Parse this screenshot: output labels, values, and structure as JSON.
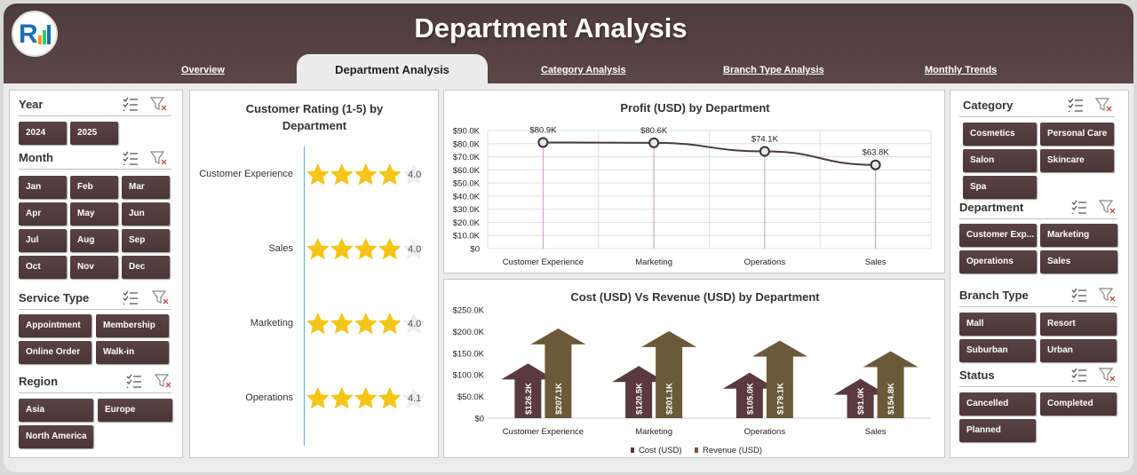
{
  "header": {
    "title": "Department Analysis",
    "tabs": [
      {
        "label": "Overview"
      },
      {
        "label": "Department Analysis"
      },
      {
        "label": "Category Analysis"
      },
      {
        "label": "Branch Type Analysis"
      },
      {
        "label": "Monthly Trends"
      }
    ]
  },
  "left_slicers": {
    "year": {
      "title": "Year",
      "items": [
        "2024",
        "2025"
      ]
    },
    "month": {
      "title": "Month",
      "items": [
        "Jan",
        "Feb",
        "Mar",
        "Apr",
        "May",
        "Jun",
        "Jul",
        "Aug",
        "Sep",
        "Oct",
        "Nov",
        "Dec"
      ]
    },
    "service_type": {
      "title": "Service Type",
      "items": [
        "Appointment",
        "Membership",
        "Online Order",
        "Walk-in"
      ]
    },
    "region": {
      "title": "Region",
      "items": [
        "Asia",
        "Europe",
        "North America"
      ]
    }
  },
  "right_slicers": {
    "category": {
      "title": "Category",
      "items": [
        "Cosmetics",
        "Personal Care",
        "Salon",
        "Skincare",
        "Spa"
      ]
    },
    "department": {
      "title": "Department",
      "items": [
        "Customer Exp...",
        "Marketing",
        "Operations",
        "Sales"
      ]
    },
    "branch_type": {
      "title": "Branch Type",
      "items": [
        "Mall",
        "Resort",
        "Suburban",
        "Urban"
      ]
    },
    "status": {
      "title": "Status",
      "items": [
        "Cancelled",
        "Completed",
        "Planned"
      ]
    }
  },
  "chart_data": [
    {
      "type": "bar",
      "title": "Customer Rating (1-5) by Department",
      "categories": [
        "Customer Experience",
        "Sales",
        "Marketing",
        "Operations"
      ],
      "values": [
        4.0,
        4.0,
        4.0,
        4.1
      ],
      "value_labels": [
        "4.0",
        "4.0",
        "4.0",
        "4.1"
      ],
      "max": 5,
      "mark": "star"
    },
    {
      "type": "line",
      "title": "Profit (USD) by Department",
      "categories": [
        "Customer Experience",
        "Marketing",
        "Operations",
        "Sales"
      ],
      "values": [
        80900,
        80600,
        74100,
        63800
      ],
      "value_labels": [
        "$80.9K",
        "$80.6K",
        "$74.1K",
        "$63.8K"
      ],
      "ylim": [
        0,
        90000
      ],
      "yticks": [
        "$0",
        "$10.0K",
        "$20.0K",
        "$30.0K",
        "$40.0K",
        "$50.0K",
        "$60.0K",
        "$70.0K",
        "$80.0K",
        "$90.0K"
      ],
      "grid": true
    },
    {
      "type": "bar",
      "title": "Cost (USD) Vs Revenue (USD) by Department",
      "categories": [
        "Customer Experience",
        "Marketing",
        "Operations",
        "Sales"
      ],
      "ylim": [
        0,
        250000
      ],
      "yticks": [
        "$0",
        "$50.0K",
        "$100.0K",
        "$150.0K",
        "$200.0K",
        "$250.0K"
      ],
      "legend": "bottom",
      "series": [
        {
          "name": "Cost (USD)",
          "values": [
            126200,
            120500,
            105000,
            91000
          ],
          "labels": [
            "$126.2K",
            "$120.5K",
            "$105.0K",
            "$91.0K"
          ],
          "color": "#5a3a3c"
        },
        {
          "name": "Revenue (USD)",
          "values": [
            207100,
            201100,
            179100,
            154800
          ],
          "labels": [
            "$207.1K",
            "$201.1K",
            "$179.1K",
            "$154.8K"
          ],
          "color": "#6b5a3a"
        }
      ]
    }
  ],
  "colors": {
    "header": "#4e3b3d",
    "button": "#4f3a3c",
    "star": "#f5c518",
    "line": "#4e3b3d"
  }
}
